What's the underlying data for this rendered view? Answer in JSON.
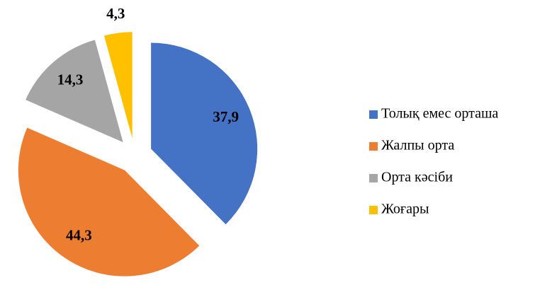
{
  "chart_data": {
    "type": "pie",
    "categories": [
      "Толық емес орташа",
      "Жалпы орта",
      "Орта кәсіби",
      "Жоғары"
    ],
    "values": [
      37.9,
      44.3,
      14.3,
      4.3
    ],
    "value_labels": [
      "37,9",
      "44,3",
      "14,3",
      "4,3"
    ],
    "colors": [
      "#4472c4",
      "#ed7d31",
      "#a5a5a5",
      "#ffc000"
    ],
    "legend": "right"
  }
}
